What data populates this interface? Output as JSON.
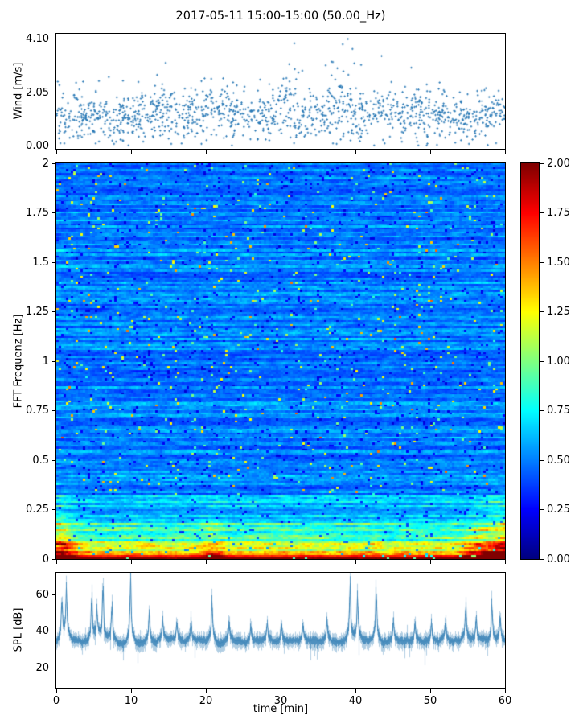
{
  "title": "2017-05-11 15:00-15:00 (50.00_Hz)",
  "figure": {
    "background": "#ffffff",
    "frame_color": "#000000"
  },
  "xaxis": {
    "label": "time [min]",
    "range": [
      0,
      60
    ],
    "tick_values": [
      0,
      10,
      20,
      30,
      40,
      50,
      60
    ],
    "tick_labels": [
      "0",
      "10",
      "20",
      "30",
      "40",
      "50",
      "60"
    ]
  },
  "colorbar": {
    "range": [
      0,
      2
    ],
    "colormap": "jet",
    "tick_values": [
      2.0,
      1.75,
      1.5,
      1.25,
      1.0,
      0.75,
      0.5,
      0.25,
      0.0
    ],
    "tick_labels": [
      "2.00",
      "1.75",
      "1.50",
      "1.25",
      "1.00",
      "0.75",
      "0.50",
      "0.25",
      "0.00"
    ]
  },
  "chart_data": [
    {
      "type": "scatter",
      "name": "wind-speed",
      "ylabel": "Wind [m/s]",
      "ylim": [
        -0.1,
        4.3
      ],
      "ytick_values": [
        4.1,
        2.05,
        0.0
      ],
      "ytick_labels": [
        "4.10",
        "2.05",
        "0.00"
      ],
      "xlim": [
        0,
        60
      ],
      "marker": "plus",
      "color": "#2878b5",
      "n_points": 1400,
      "y_min": 0.03,
      "y_max": 4.1,
      "y_mean": 1.4,
      "burst_peaks": [
        {
          "t": 13,
          "amp": 0.18
        },
        {
          "t": 21,
          "amp": 0.24
        },
        {
          "t": 31,
          "amp": 0.28
        },
        {
          "t": 38,
          "amp": 0.45
        },
        {
          "t": 48,
          "amp": 0.14
        },
        {
          "t": 57,
          "amp": 0.15
        }
      ]
    },
    {
      "type": "heatmap",
      "name": "fft-spectrogram",
      "ylabel": "FFT Frequenz [Hz]",
      "ylim": [
        0,
        2
      ],
      "ytick_values": [
        2,
        1.75,
        1.5,
        1.25,
        1,
        0.75,
        0.5,
        0.25,
        0
      ],
      "ytick_labels": [
        "2",
        "1.75",
        "1.5",
        "1.25",
        "1",
        "0.75",
        "0.5",
        "0.25",
        "0"
      ],
      "xlim": [
        0,
        60
      ],
      "colormap": "jet",
      "vmin": 0,
      "vmax": 2,
      "freq_profile": [
        {
          "f_max": 0.008,
          "base": 1.7,
          "spread": 0.3
        },
        {
          "f_max": 0.02,
          "base": 1.1,
          "spread": 0.75
        },
        {
          "f_max": 0.045,
          "base": 0.8,
          "spread": 0.75
        },
        {
          "f_max": 0.09,
          "base": 0.52,
          "spread": 0.6
        },
        {
          "f_max": 0.16,
          "base": 0.4,
          "spread": 0.45
        },
        {
          "f_max": 1.0,
          "base": 0.3,
          "spread": 0.38
        }
      ],
      "hot_columns": [
        {
          "t": 0.5,
          "amp": 0.55,
          "width": 1.6
        },
        {
          "t": 21,
          "amp": 0.25,
          "width": 1.2
        },
        {
          "t": 57,
          "amp": 0.4,
          "width": 2.2
        },
        {
          "t": 60,
          "amp": 0.55,
          "width": 1.6
        }
      ],
      "description": "intensity concentrated below 0.2 Hz (red/orange/yellow), blue background with cyan-green speckled streaks"
    },
    {
      "type": "line",
      "name": "spl",
      "ylabel": "SPL [dB]",
      "ylim": [
        9,
        72
      ],
      "ytick_values": [
        60,
        40,
        20
      ],
      "ytick_labels": [
        "60",
        "40",
        "20"
      ],
      "xlim": [
        0,
        60
      ],
      "color": "#3d85b8",
      "baseline": 34.5,
      "noise_halfwidth": 3.5,
      "spikes": [
        [
          0.7,
          16
        ],
        [
          1.3,
          20
        ],
        [
          4.7,
          19
        ],
        [
          5.4,
          12
        ],
        [
          6.2,
          23
        ],
        [
          7.4,
          15
        ],
        [
          9.9,
          27
        ],
        [
          12.4,
          12
        ],
        [
          14.2,
          8
        ],
        [
          16.1,
          7
        ],
        [
          18.0,
          8
        ],
        [
          20.8,
          17
        ],
        [
          23.1,
          7
        ],
        [
          26.0,
          6
        ],
        [
          28.2,
          7
        ],
        [
          30.1,
          8
        ],
        [
          33.0,
          7
        ],
        [
          36.2,
          8
        ],
        [
          39.3,
          24
        ],
        [
          40.3,
          18
        ],
        [
          42.8,
          21
        ],
        [
          45.1,
          8
        ],
        [
          48.0,
          7
        ],
        [
          50.2,
          8
        ],
        [
          52.1,
          7
        ],
        [
          54.8,
          15
        ],
        [
          56.2,
          9
        ],
        [
          58.3,
          16
        ],
        [
          59.4,
          10
        ]
      ]
    }
  ]
}
